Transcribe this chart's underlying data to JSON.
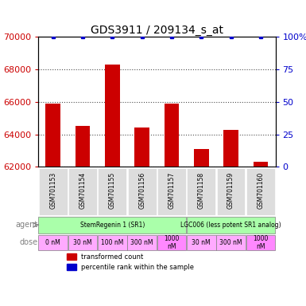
{
  "title": "GDS3911 / 209134_s_at",
  "samples": [
    "GSM701153",
    "GSM701154",
    "GSM701155",
    "GSM701156",
    "GSM701157",
    "GSM701158",
    "GSM701159",
    "GSM701160"
  ],
  "bar_values": [
    65900,
    64500,
    68300,
    64400,
    65900,
    63100,
    64300,
    62300
  ],
  "percentile_values": [
    100,
    100,
    100,
    100,
    100,
    100,
    100,
    100
  ],
  "ylim_left": [
    62000,
    70000
  ],
  "ylim_right": [
    0,
    100
  ],
  "yticks_left": [
    62000,
    64000,
    66000,
    68000,
    70000
  ],
  "yticks_right": [
    0,
    25,
    50,
    75,
    100
  ],
  "bar_color": "#cc0000",
  "dot_color": "#0000cc",
  "agent_row": [
    {
      "label": "StemRegenin 1 (SR1)",
      "color": "#aaffaa",
      "span": [
        0,
        5
      ]
    },
    {
      "label": "LGC006 (less potent SR1 analog)",
      "color": "#aaffaa",
      "span": [
        5,
        8
      ]
    }
  ],
  "dose_row": [
    {
      "label": "0 nM",
      "color": "#ffaaff",
      "span": [
        0,
        1
      ]
    },
    {
      "label": "30 nM",
      "color": "#ffaaff",
      "span": [
        1,
        2
      ]
    },
    {
      "label": "100 nM",
      "color": "#ffaaff",
      "span": [
        2,
        3
      ]
    },
    {
      "label": "300 nM",
      "color": "#ffaaff",
      "span": [
        3,
        4
      ]
    },
    {
      "label": "1000\nnM",
      "color": "#ff88ff",
      "span": [
        4,
        5
      ]
    },
    {
      "label": "30 nM",
      "color": "#ffaaff",
      "span": [
        5,
        6
      ]
    },
    {
      "label": "300 nM",
      "color": "#ffaaff",
      "span": [
        6,
        7
      ]
    },
    {
      "label": "1000\nnM",
      "color": "#ff88ff",
      "span": [
        7,
        8
      ]
    }
  ],
  "sample_bg_color": "#dddddd",
  "legend_items": [
    {
      "label": "transformed count",
      "color": "#cc0000",
      "marker": "s"
    },
    {
      "label": "percentile rank within the sample",
      "color": "#0000cc",
      "marker": "s"
    }
  ],
  "xlabel": "",
  "ylabel_left": "",
  "ylabel_right": ""
}
